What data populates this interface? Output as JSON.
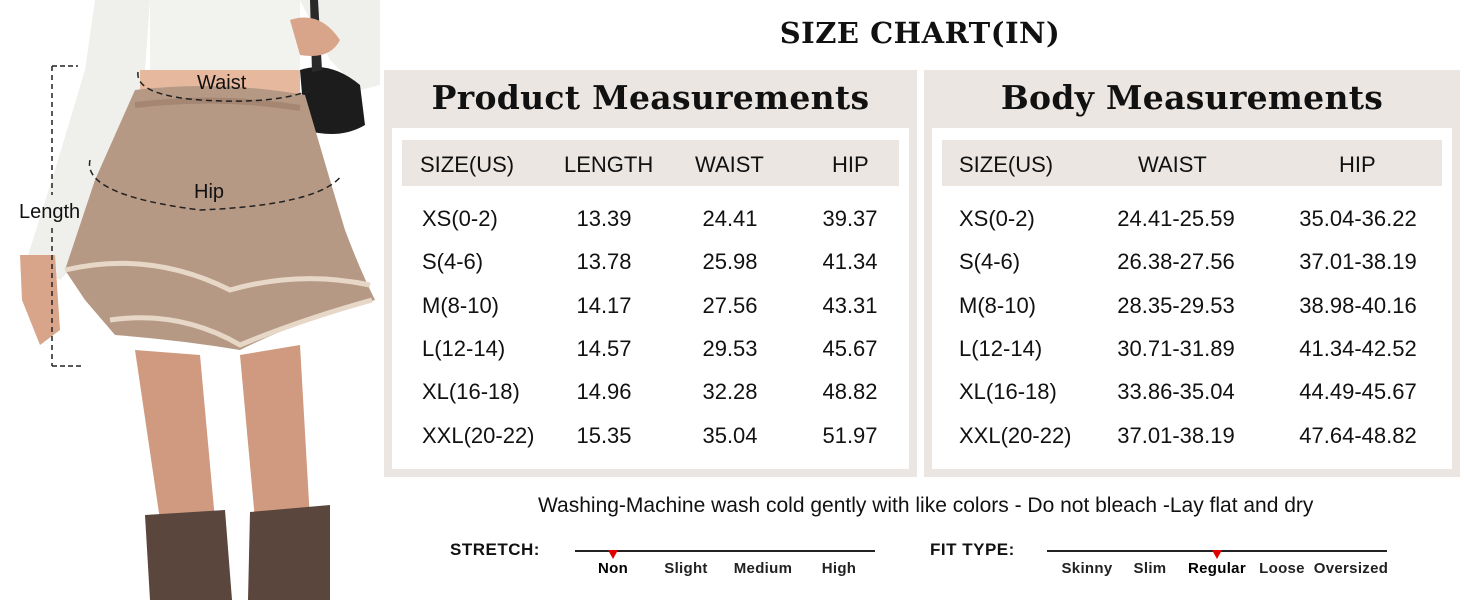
{
  "figure": {
    "labels": {
      "waist": "Waist",
      "hip": "Hip",
      "length": "Length"
    }
  },
  "title": "SIZE CHART(IN)",
  "product": {
    "title": "Product Measurements",
    "headers": [
      "SIZE(US)",
      "LENGTH",
      "WAIST",
      "HIP"
    ],
    "rows": [
      [
        "XS(0-2)",
        "13.39",
        "24.41",
        "39.37"
      ],
      [
        "S(4-6)",
        "13.78",
        "25.98",
        "41.34"
      ],
      [
        "M(8-10)",
        "14.17",
        "27.56",
        "43.31"
      ],
      [
        "L(12-14)",
        "14.57",
        "29.53",
        "45.67"
      ],
      [
        "XL(16-18)",
        "14.96",
        "32.28",
        "48.82"
      ],
      [
        "XXL(20-22)",
        "15.35",
        "35.04",
        "51.97"
      ]
    ]
  },
  "body": {
    "title": "Body Measurements",
    "headers": [
      "SIZE(US)",
      "WAIST",
      "HIP"
    ],
    "rows": [
      [
        "XS(0-2)",
        "24.41-25.59",
        "35.04-36.22"
      ],
      [
        "S(4-6)",
        "26.38-27.56",
        "37.01-38.19"
      ],
      [
        "M(8-10)",
        "28.35-29.53",
        "38.98-40.16"
      ],
      [
        "L(12-14)",
        "30.71-31.89",
        "41.34-42.52"
      ],
      [
        "XL(16-18)",
        "33.86-35.04",
        "44.49-45.67"
      ],
      [
        "XXL(20-22)",
        "37.01-38.19",
        "47.64-48.82"
      ]
    ]
  },
  "care": "Washing-Machine wash cold gently with like colors - Do not bleach -Lay flat and dry",
  "stretch": {
    "label": "STRETCH:",
    "options": [
      "Non",
      "Slight",
      "Medium",
      "High"
    ],
    "selected": "Non"
  },
  "fit": {
    "label": "FIT TYPE:",
    "options": [
      "Skinny",
      "Slim",
      "Regular",
      "Loose",
      "Oversized"
    ],
    "selected": "Regular"
  },
  "colors": {
    "panel": "#ebe6e2",
    "marker": "#e00000",
    "skirt": "#b59985"
  }
}
